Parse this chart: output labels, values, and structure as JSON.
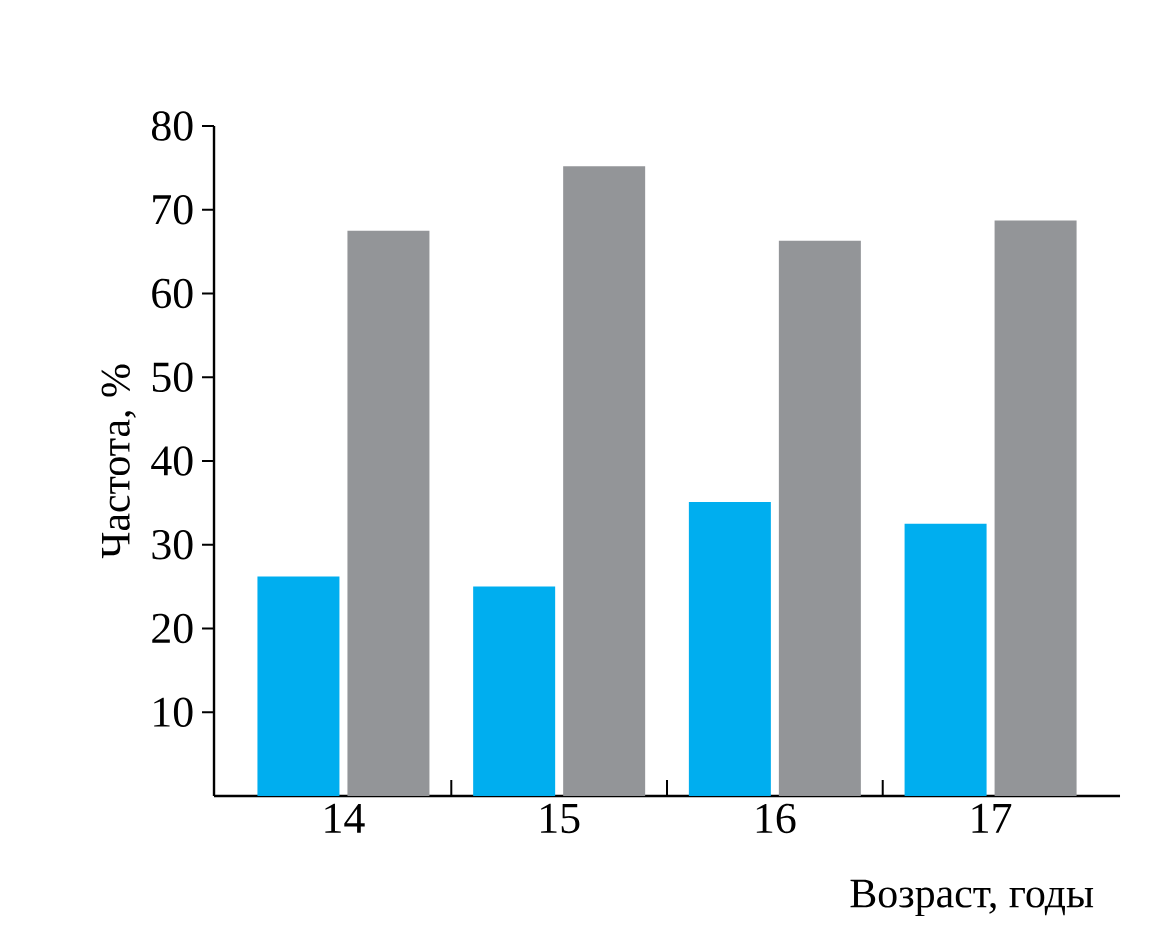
{
  "chart_data": {
    "type": "bar",
    "xlabel": "Возраст, годы",
    "ylabel": "Частота, %",
    "categories": [
      "14",
      "15",
      "16",
      "17"
    ],
    "series": [
      {
        "color": "#00aeef",
        "values": [
          26.2,
          25.0,
          35.1,
          32.5
        ]
      },
      {
        "color": "#939598",
        "values": [
          67.5,
          75.2,
          66.3,
          68.7
        ]
      }
    ],
    "ylim": [
      0,
      80
    ],
    "yticks": [
      10,
      20,
      30,
      40,
      50,
      60,
      70,
      80
    ]
  }
}
